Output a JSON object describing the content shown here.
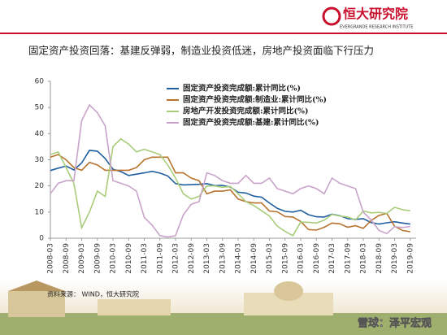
{
  "header": {
    "logo_text": "恒大研究院",
    "logo_subtext": "EVERGRANDE RESEARCH INSTITUTE"
  },
  "source": "资料来源： WIND，恒大研究院",
  "watermark": "雪球：泽平宏观",
  "chart_data": {
    "type": "line",
    "title": "固定资产投资回落：基建反弹弱，制造业投资低迷，房地产投资面临下行压力",
    "x": [
      "2008-03",
      "2008-06",
      "2008-09",
      "2008-12",
      "2009-03",
      "2009-06",
      "2009-09",
      "2009-12",
      "2010-03",
      "2010-06",
      "2010-09",
      "2010-12",
      "2011-03",
      "2011-06",
      "2011-09",
      "2011-12",
      "2012-03",
      "2012-06",
      "2012-09",
      "2012-12",
      "2013-03",
      "2013-06",
      "2013-09",
      "2013-12",
      "2014-03",
      "2014-06",
      "2014-09",
      "2014-12",
      "2015-03",
      "2015-06",
      "2015-09",
      "2015-12",
      "2016-03",
      "2016-06",
      "2016-09",
      "2016-12",
      "2017-03",
      "2017-06",
      "2017-09",
      "2017-12",
      "2018-03",
      "2018-06",
      "2018-09",
      "2018-12",
      "2019-03",
      "2019-06",
      "2019-09"
    ],
    "xlim": [
      "2008-03",
      "2019-10"
    ],
    "xticks": [
      "2008-03",
      "2008-09",
      "2009-03",
      "2009-09",
      "2010-03",
      "2010-09",
      "2011-03",
      "2011-09",
      "2012-03",
      "2012-09",
      "2013-03",
      "2013-09",
      "2014-03",
      "2014-09",
      "2015-03",
      "2015-09",
      "2016-03",
      "2016-09",
      "2017-03",
      "2017-09",
      "2018-03",
      "2018-09",
      "2019-03",
      "2019-09"
    ],
    "ylim": [
      0,
      60
    ],
    "yticks": [
      0,
      10,
      20,
      30,
      40,
      50,
      60
    ],
    "legend": "top-center",
    "series": [
      {
        "name": "固定资产投资完成额:累计同比(%)",
        "color": "#1f5fa0",
        "values": [
          25.9,
          26.8,
          27.6,
          26.1,
          28.8,
          33.6,
          33.3,
          30.5,
          26.4,
          25.5,
          24.0,
          24.5,
          25.0,
          25.6,
          24.9,
          23.8,
          20.9,
          20.4,
          20.5,
          20.6,
          20.9,
          20.1,
          20.2,
          19.6,
          17.6,
          17.3,
          16.1,
          15.7,
          13.5,
          11.4,
          10.3,
          10.0,
          10.7,
          9.0,
          8.2,
          8.1,
          9.2,
          8.6,
          7.5,
          7.2,
          7.5,
          6.0,
          5.4,
          5.9,
          6.3,
          5.8,
          5.4
        ]
      },
      {
        "name": "固定资产投资完成额:制造业:累计同比(%)",
        "color": "#b8732e",
        "values": [
          31,
          32,
          30,
          27,
          26,
          29,
          28,
          26,
          26,
          26,
          26,
          27,
          30,
          31,
          31,
          31,
          25,
          25,
          23,
          22,
          17,
          18,
          18,
          18.5,
          15,
          14,
          13.5,
          13.5,
          10.4,
          10.1,
          8.3,
          8.1,
          6.4,
          3.3,
          3.1,
          4.2,
          5.8,
          5.5,
          4.2,
          4.8,
          3.8,
          6.8,
          8.7,
          9.5,
          4.6,
          3.0,
          2.5
        ]
      },
      {
        "name": "房地产开发投资完成额:累计同比(%)",
        "color": "#a9cc7a",
        "values": [
          32,
          33,
          27,
          21,
          4,
          10,
          18,
          16,
          35,
          38,
          36,
          33,
          34,
          33,
          32,
          28,
          23,
          17,
          15,
          16,
          20,
          20,
          19.5,
          19.8,
          17,
          14,
          12.5,
          10.5,
          8.5,
          4.6,
          2.6,
          1.0,
          6.2,
          6.1,
          5.8,
          6.9,
          9.1,
          8.5,
          8.1,
          7.0,
          10.4,
          9.7,
          9.9,
          9.5,
          11.8,
          10.9,
          10.5
        ]
      },
      {
        "name": "固定资产投资完成额:基建:累计同比(%)",
        "color": "#c9a3c9",
        "values": [
          17,
          21,
          22,
          22,
          45,
          51,
          48,
          43,
          22,
          21,
          20,
          18,
          8,
          5,
          1,
          0.5,
          1,
          9,
          13,
          14,
          25,
          24,
          22,
          21,
          21,
          24,
          21,
          21,
          23,
          19,
          18,
          17,
          19,
          20,
          19,
          17,
          23,
          21,
          20,
          19,
          10,
          7,
          3,
          1.8,
          4.4,
          4.1,
          4.5
        ]
      }
    ]
  }
}
